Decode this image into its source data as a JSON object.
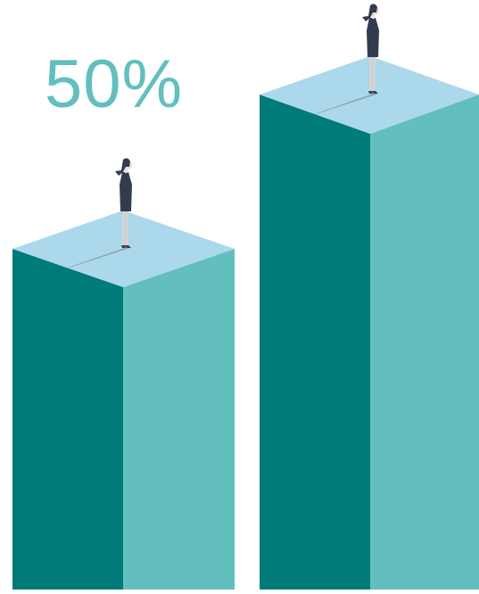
{
  "headline": {
    "value_text": "50%"
  },
  "colors": {
    "background": "#ffffff",
    "accent_text": "#62bfbe",
    "pillar_left_face": "#007b79",
    "pillar_right_face": "#63bfbd",
    "pillar_top_face": "#acd8ec",
    "figure_dark": "#333c4f",
    "figure_skin": "#f1dcdc",
    "figure_legs": "#d8d2d2",
    "shadow": "#8da8b7"
  },
  "illustration": {
    "pillars": [
      {
        "name": "shorter-pillar",
        "icon": "column-icon"
      },
      {
        "name": "taller-pillar",
        "icon": "column-icon"
      }
    ],
    "figures": [
      {
        "name": "woman-figure-short",
        "icon": "person-icon"
      },
      {
        "name": "woman-figure-tall",
        "icon": "person-icon"
      }
    ]
  }
}
